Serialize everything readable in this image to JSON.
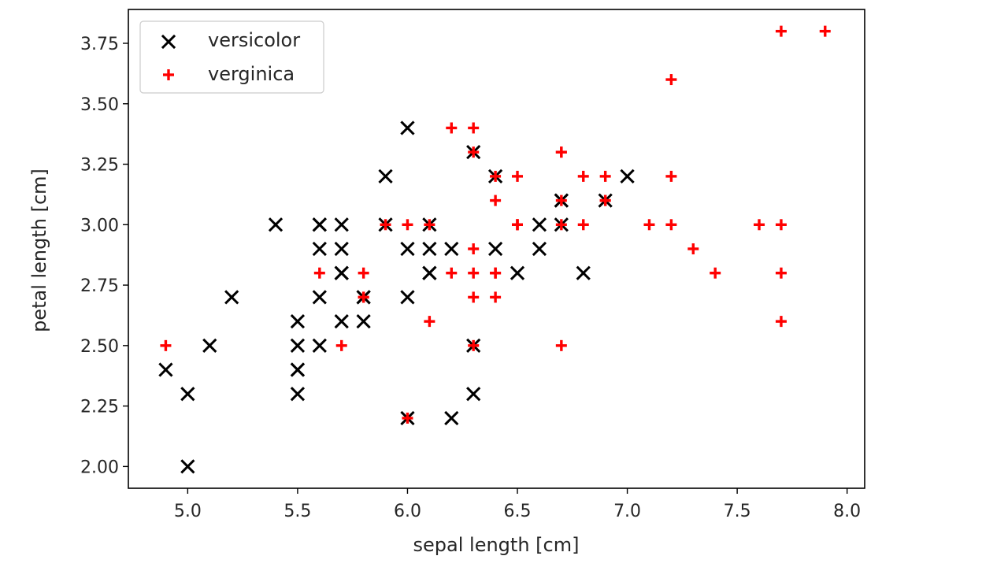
{
  "chart_data": {
    "type": "scatter",
    "title": "",
    "xlabel": "sepal length [cm]",
    "ylabel": "petal length [cm]",
    "xlim": [
      4.73,
      8.08
    ],
    "ylim": [
      1.91,
      3.89
    ],
    "xticks": [
      5.0,
      5.5,
      6.0,
      6.5,
      7.0,
      7.5,
      8.0
    ],
    "xtick_labels": [
      "5.0",
      "5.5",
      "6.0",
      "6.5",
      "7.0",
      "7.5",
      "8.0"
    ],
    "yticks": [
      2.0,
      2.25,
      2.5,
      2.75,
      3.0,
      3.25,
      3.5,
      3.75
    ],
    "ytick_labels": [
      "2.00",
      "2.25",
      "2.50",
      "2.75",
      "3.00",
      "3.25",
      "3.50",
      "3.75"
    ],
    "grid": false,
    "legend_position": "top-left",
    "series": [
      {
        "name": "versicolor",
        "marker": "x",
        "color": "#000000",
        "points": [
          [
            7.0,
            3.2
          ],
          [
            6.4,
            3.2
          ],
          [
            6.9,
            3.1
          ],
          [
            5.5,
            2.3
          ],
          [
            6.5,
            2.8
          ],
          [
            5.7,
            2.8
          ],
          [
            6.3,
            3.3
          ],
          [
            4.9,
            2.4
          ],
          [
            6.6,
            2.9
          ],
          [
            5.2,
            2.7
          ],
          [
            5.0,
            2.0
          ],
          [
            5.9,
            3.0
          ],
          [
            6.0,
            2.2
          ],
          [
            6.1,
            2.9
          ],
          [
            5.6,
            2.9
          ],
          [
            6.7,
            3.1
          ],
          [
            5.6,
            3.0
          ],
          [
            5.8,
            2.7
          ],
          [
            6.2,
            2.2
          ],
          [
            5.6,
            2.5
          ],
          [
            5.9,
            3.2
          ],
          [
            6.1,
            2.8
          ],
          [
            6.3,
            2.5
          ],
          [
            6.1,
            2.8
          ],
          [
            6.4,
            2.9
          ],
          [
            6.6,
            3.0
          ],
          [
            6.8,
            2.8
          ],
          [
            6.7,
            3.0
          ],
          [
            6.0,
            2.9
          ],
          [
            5.7,
            2.6
          ],
          [
            5.5,
            2.4
          ],
          [
            5.5,
            2.4
          ],
          [
            5.8,
            2.7
          ],
          [
            6.0,
            2.7
          ],
          [
            5.4,
            3.0
          ],
          [
            6.0,
            3.4
          ],
          [
            6.7,
            3.1
          ],
          [
            6.3,
            2.3
          ],
          [
            5.6,
            3.0
          ],
          [
            5.5,
            2.5
          ],
          [
            5.5,
            2.6
          ],
          [
            6.1,
            3.0
          ],
          [
            5.8,
            2.6
          ],
          [
            5.0,
            2.3
          ],
          [
            5.6,
            2.7
          ],
          [
            5.7,
            3.0
          ],
          [
            5.7,
            2.9
          ],
          [
            6.2,
            2.9
          ],
          [
            5.1,
            2.5
          ],
          [
            5.7,
            2.8
          ]
        ]
      },
      {
        "name": "verginica",
        "marker": "+",
        "color": "#ff0000",
        "points": [
          [
            6.3,
            3.3
          ],
          [
            5.8,
            2.7
          ],
          [
            7.1,
            3.0
          ],
          [
            6.3,
            2.9
          ],
          [
            6.5,
            3.0
          ],
          [
            7.6,
            3.0
          ],
          [
            4.9,
            2.5
          ],
          [
            7.3,
            2.9
          ],
          [
            6.7,
            2.5
          ],
          [
            7.2,
            3.6
          ],
          [
            6.5,
            3.2
          ],
          [
            6.4,
            2.7
          ],
          [
            6.8,
            3.0
          ],
          [
            5.7,
            2.5
          ],
          [
            5.8,
            2.8
          ],
          [
            6.4,
            3.2
          ],
          [
            6.5,
            3.0
          ],
          [
            7.7,
            3.8
          ],
          [
            7.7,
            2.6
          ],
          [
            6.0,
            2.2
          ],
          [
            6.9,
            3.2
          ],
          [
            5.6,
            2.8
          ],
          [
            7.7,
            2.8
          ],
          [
            6.3,
            2.7
          ],
          [
            6.7,
            3.3
          ],
          [
            7.2,
            3.2
          ],
          [
            6.2,
            2.8
          ],
          [
            6.1,
            3.0
          ],
          [
            6.4,
            2.8
          ],
          [
            7.2,
            3.0
          ],
          [
            7.4,
            2.8
          ],
          [
            7.9,
            3.8
          ],
          [
            6.4,
            2.8
          ],
          [
            6.3,
            2.8
          ],
          [
            6.1,
            2.6
          ],
          [
            7.7,
            3.0
          ],
          [
            6.3,
            3.4
          ],
          [
            6.4,
            3.1
          ],
          [
            6.0,
            3.0
          ],
          [
            6.9,
            3.1
          ],
          [
            6.7,
            3.1
          ],
          [
            6.9,
            3.1
          ],
          [
            5.8,
            2.7
          ],
          [
            6.8,
            3.2
          ],
          [
            6.7,
            3.3
          ],
          [
            6.7,
            3.0
          ],
          [
            6.3,
            2.5
          ],
          [
            6.5,
            3.0
          ],
          [
            6.2,
            3.4
          ],
          [
            5.9,
            3.0
          ]
        ]
      }
    ]
  }
}
